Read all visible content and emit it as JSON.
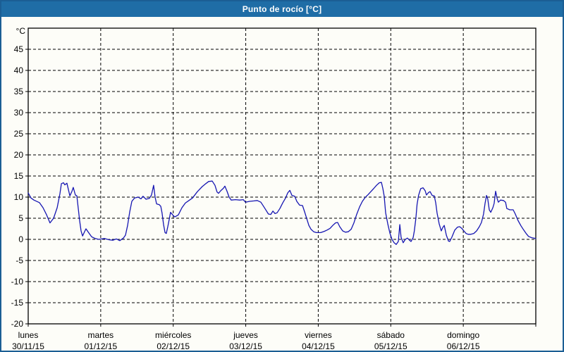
{
  "window": {
    "title": "Punto de rocío [°C]"
  },
  "colors": {
    "titlebar_bg": "#1f6da6",
    "window_border": "#1b5e94",
    "panel_bg": "#fdfdf8",
    "plot_bg": "#fdfdf8",
    "axis": "#000000",
    "grid": "#000000",
    "line": "#1616b2",
    "title_text": "#ffffff",
    "label_text": "#000000"
  },
  "chart_data": {
    "type": "line",
    "title": "Punto de rocío [°C]",
    "ylabel": "°C",
    "ylim": [
      -20,
      50
    ],
    "ytick_min": -20,
    "ytick_max": 45,
    "ytick_step": 5,
    "grid": "dashed",
    "legend_position": "none",
    "x_unit": "hours",
    "xlim": [
      0,
      168
    ],
    "days": [
      {
        "name": "lunes",
        "date": "30/11/15"
      },
      {
        "name": "martes",
        "date": "01/12/15"
      },
      {
        "name": "miércoles",
        "date": "02/12/15"
      },
      {
        "name": "jueves",
        "date": "03/12/15"
      },
      {
        "name": "viernes",
        "date": "04/12/15"
      },
      {
        "name": "sábado",
        "date": "05/12/15"
      },
      {
        "name": "domingo",
        "date": "06/12/15"
      }
    ],
    "series": [
      {
        "name": "Punto de rocío",
        "color": "#1616b2",
        "points": [
          [
            0.0,
            11.0
          ],
          [
            0.9,
            9.8
          ],
          [
            1.9,
            9.3
          ],
          [
            3.7,
            8.7
          ],
          [
            4.9,
            7.5
          ],
          [
            6.1,
            5.8
          ],
          [
            7.2,
            3.9
          ],
          [
            8.4,
            5.0
          ],
          [
            9.6,
            7.5
          ],
          [
            10.5,
            10.8
          ],
          [
            11.0,
            13.2
          ],
          [
            11.7,
            13.4
          ],
          [
            12.1,
            12.9
          ],
          [
            12.8,
            13.3
          ],
          [
            13.8,
            10.3
          ],
          [
            14.5,
            11.4
          ],
          [
            14.9,
            12.3
          ],
          [
            15.6,
            10.5
          ],
          [
            16.1,
            10.3
          ],
          [
            16.6,
            7.2
          ],
          [
            17.0,
            4.5
          ],
          [
            17.5,
            2.0
          ],
          [
            18.0,
            0.8
          ],
          [
            19.1,
            2.5
          ],
          [
            20.1,
            1.5
          ],
          [
            21.0,
            0.6
          ],
          [
            22.2,
            0.2
          ],
          [
            23.3,
            0.0
          ],
          [
            25.2,
            0.2
          ],
          [
            26.8,
            -0.1
          ],
          [
            28.0,
            -0.2
          ],
          [
            29.2,
            0.1
          ],
          [
            30.3,
            -0.3
          ],
          [
            31.5,
            0.3
          ],
          [
            32.2,
            1.0
          ],
          [
            32.9,
            3.3
          ],
          [
            33.6,
            6.5
          ],
          [
            34.3,
            9.0
          ],
          [
            35.2,
            9.8
          ],
          [
            36.4,
            10.0
          ],
          [
            37.3,
            9.6
          ],
          [
            38.0,
            10.2
          ],
          [
            39.0,
            9.5
          ],
          [
            40.1,
            9.7
          ],
          [
            40.8,
            10.5
          ],
          [
            41.5,
            12.8
          ],
          [
            42.0,
            10.0
          ],
          [
            42.5,
            8.4
          ],
          [
            43.4,
            8.2
          ],
          [
            43.9,
            7.8
          ],
          [
            44.3,
            6.2
          ],
          [
            44.8,
            3.5
          ],
          [
            45.3,
            1.6
          ],
          [
            45.7,
            1.4
          ],
          [
            46.2,
            3.0
          ],
          [
            46.7,
            4.8
          ],
          [
            47.1,
            6.4
          ],
          [
            47.8,
            5.8
          ],
          [
            48.5,
            5.3
          ],
          [
            49.7,
            5.8
          ],
          [
            50.9,
            7.5
          ],
          [
            52.0,
            8.6
          ],
          [
            53.2,
            9.2
          ],
          [
            54.4,
            9.8
          ],
          [
            56.0,
            11.3
          ],
          [
            57.6,
            12.5
          ],
          [
            58.8,
            13.2
          ],
          [
            59.7,
            13.7
          ],
          [
            60.9,
            13.8
          ],
          [
            61.8,
            12.8
          ],
          [
            62.5,
            11.2
          ],
          [
            63.0,
            10.9
          ],
          [
            63.7,
            11.5
          ],
          [
            64.6,
            12.1
          ],
          [
            65.1,
            12.6
          ],
          [
            65.8,
            11.4
          ],
          [
            66.5,
            10.0
          ],
          [
            67.2,
            9.3
          ],
          [
            68.6,
            9.4
          ],
          [
            70.0,
            9.3
          ],
          [
            71.2,
            9.4
          ],
          [
            71.9,
            8.8
          ],
          [
            73.3,
            9.0
          ],
          [
            74.7,
            9.1
          ],
          [
            75.8,
            9.2
          ],
          [
            77.0,
            8.8
          ],
          [
            77.9,
            7.8
          ],
          [
            78.8,
            6.8
          ],
          [
            79.5,
            6.0
          ],
          [
            80.3,
            5.9
          ],
          [
            81.0,
            6.7
          ],
          [
            81.7,
            6.1
          ],
          [
            82.4,
            6.3
          ],
          [
            83.3,
            7.3
          ],
          [
            84.2,
            8.6
          ],
          [
            85.2,
            9.8
          ],
          [
            85.9,
            11.0
          ],
          [
            86.6,
            11.6
          ],
          [
            87.3,
            10.4
          ],
          [
            88.2,
            10.2
          ],
          [
            88.9,
            9.0
          ],
          [
            89.8,
            8.1
          ],
          [
            90.8,
            8.0
          ],
          [
            91.5,
            6.5
          ],
          [
            92.2,
            4.9
          ],
          [
            92.9,
            3.3
          ],
          [
            93.6,
            2.4
          ],
          [
            94.5,
            1.8
          ],
          [
            95.4,
            1.6
          ],
          [
            96.8,
            1.6
          ],
          [
            98.0,
            1.9
          ],
          [
            98.9,
            2.2
          ],
          [
            99.9,
            2.6
          ],
          [
            100.8,
            3.3
          ],
          [
            101.7,
            3.9
          ],
          [
            102.4,
            4.0
          ],
          [
            103.1,
            3.0
          ],
          [
            104.1,
            2.0
          ],
          [
            105.0,
            1.7
          ],
          [
            105.9,
            1.8
          ],
          [
            106.9,
            2.4
          ],
          [
            107.8,
            3.9
          ],
          [
            108.7,
            5.9
          ],
          [
            109.7,
            7.7
          ],
          [
            110.6,
            9.0
          ],
          [
            111.5,
            9.9
          ],
          [
            112.5,
            10.6
          ],
          [
            113.4,
            11.3
          ],
          [
            114.3,
            12.0
          ],
          [
            115.3,
            12.8
          ],
          [
            116.2,
            13.4
          ],
          [
            116.9,
            13.5
          ],
          [
            117.4,
            12.0
          ],
          [
            117.8,
            10.3
          ],
          [
            118.3,
            6.3
          ],
          [
            119.0,
            3.7
          ],
          [
            119.7,
            1.5
          ],
          [
            120.4,
            0.0
          ],
          [
            121.1,
            -0.8
          ],
          [
            121.8,
            -1.2
          ],
          [
            122.5,
            -0.5
          ],
          [
            123.0,
            3.5
          ],
          [
            123.4,
            0.5
          ],
          [
            124.1,
            -0.8
          ],
          [
            124.8,
            0.0
          ],
          [
            125.5,
            0.3
          ],
          [
            126.2,
            -0.2
          ],
          [
            126.7,
            -0.5
          ],
          [
            127.4,
            0.4
          ],
          [
            127.8,
            2.0
          ],
          [
            128.3,
            5.0
          ],
          [
            128.7,
            8.3
          ],
          [
            129.2,
            10.4
          ],
          [
            129.9,
            12.0
          ],
          [
            130.7,
            12.2
          ],
          [
            131.4,
            11.5
          ],
          [
            131.8,
            10.5
          ],
          [
            132.5,
            11.1
          ],
          [
            133.0,
            11.3
          ],
          [
            133.7,
            10.4
          ],
          [
            134.4,
            10.3
          ],
          [
            134.9,
            8.6
          ],
          [
            135.3,
            6.3
          ],
          [
            136.0,
            3.7
          ],
          [
            136.7,
            2.0
          ],
          [
            137.2,
            2.8
          ],
          [
            137.7,
            3.3
          ],
          [
            138.4,
            1.0
          ],
          [
            139.1,
            -0.4
          ],
          [
            139.5,
            -0.5
          ],
          [
            140.2,
            0.5
          ],
          [
            141.2,
            2.2
          ],
          [
            142.1,
            2.9
          ],
          [
            142.8,
            3.0
          ],
          [
            143.5,
            2.6
          ],
          [
            144.2,
            2.0
          ],
          [
            144.9,
            1.4
          ],
          [
            145.6,
            1.2
          ],
          [
            146.5,
            1.2
          ],
          [
            147.5,
            1.4
          ],
          [
            148.4,
            2.0
          ],
          [
            149.3,
            3.0
          ],
          [
            150.0,
            4.0
          ],
          [
            150.7,
            6.0
          ],
          [
            151.2,
            8.5
          ],
          [
            151.7,
            10.4
          ],
          [
            152.1,
            9.5
          ],
          [
            152.6,
            7.0
          ],
          [
            153.1,
            6.4
          ],
          [
            153.8,
            7.5
          ],
          [
            154.2,
            8.5
          ],
          [
            154.7,
            11.4
          ],
          [
            155.2,
            9.7
          ],
          [
            155.6,
            8.8
          ],
          [
            156.3,
            9.3
          ],
          [
            157.3,
            9.2
          ],
          [
            158.0,
            8.8
          ],
          [
            158.4,
            7.3
          ],
          [
            159.4,
            7.0
          ],
          [
            160.5,
            7.0
          ],
          [
            161.2,
            6.0
          ],
          [
            162.1,
            4.5
          ],
          [
            163.1,
            3.2
          ],
          [
            164.0,
            2.2
          ],
          [
            164.9,
            1.3
          ],
          [
            165.6,
            0.7
          ],
          [
            166.6,
            0.4
          ],
          [
            168.0,
            0.2
          ]
        ]
      }
    ]
  }
}
